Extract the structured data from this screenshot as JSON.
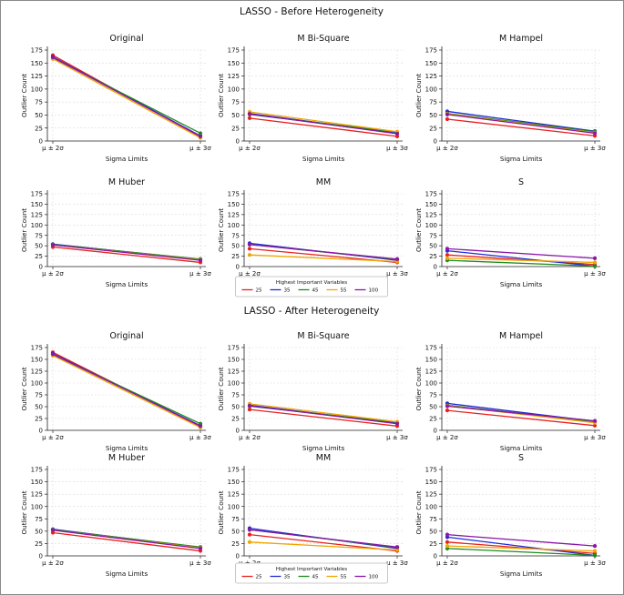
{
  "sections": [
    {
      "title": "LASSO - Before Heterogeneity",
      "legend": {
        "title": "Highest Important Variables",
        "entries": [
          "25",
          "35",
          "45",
          "55",
          "100"
        ]
      }
    },
    {
      "title": "LASSO - After Heterogeneity",
      "legend": {
        "title": "Highest Important Variables",
        "entries": [
          "25",
          "35",
          "45",
          "55",
          "100"
        ]
      }
    }
  ],
  "colors": {
    "25": "#e8201e",
    "35": "#1f2bd6",
    "45": "#1e8a1e",
    "55": "#f0a500",
    "100": "#8b16a8"
  },
  "chart_data": [
    {
      "section": 0,
      "type": "line",
      "title": "Original",
      "xlabel": "Sigma Limits",
      "ylabel": "Outlier Count",
      "categories": [
        "μ ± 2σ",
        "μ ± 3σ"
      ],
      "ylim": [
        0,
        175
      ],
      "yticks": [
        0,
        25,
        50,
        75,
        100,
        125,
        150,
        175
      ],
      "series": [
        {
          "name": "25",
          "values": [
            165,
            8
          ]
        },
        {
          "name": "35",
          "values": [
            162,
            10
          ]
        },
        {
          "name": "45",
          "values": [
            160,
            15
          ]
        },
        {
          "name": "55",
          "values": [
            158,
            6
          ]
        },
        {
          "name": "100",
          "values": [
            161,
            9
          ]
        }
      ]
    },
    {
      "section": 0,
      "type": "line",
      "title": "M Bi-Square",
      "xlabel": "Sigma Limits",
      "ylabel": "Outlier Count",
      "categories": [
        "μ ± 2σ",
        "μ ± 3σ"
      ],
      "ylim": [
        0,
        175
      ],
      "yticks": [
        0,
        25,
        50,
        75,
        100,
        125,
        150,
        175
      ],
      "series": [
        {
          "name": "25",
          "values": [
            44,
            9
          ]
        },
        {
          "name": "35",
          "values": [
            53,
            15
          ]
        },
        {
          "name": "45",
          "values": [
            51,
            17
          ]
        },
        {
          "name": "55",
          "values": [
            56,
            18
          ]
        },
        {
          "name": "100",
          "values": [
            52,
            14
          ]
        }
      ]
    },
    {
      "section": 0,
      "type": "line",
      "title": "M Hampel",
      "xlabel": "Sigma Limits",
      "ylabel": "Outlier Count",
      "categories": [
        "μ ± 2σ",
        "μ ± 3σ"
      ],
      "ylim": [
        0,
        175
      ],
      "yticks": [
        0,
        25,
        50,
        75,
        100,
        125,
        150,
        175
      ],
      "series": [
        {
          "name": "25",
          "values": [
            42,
            10
          ]
        },
        {
          "name": "35",
          "values": [
            57,
            19
          ]
        },
        {
          "name": "45",
          "values": [
            53,
            18
          ]
        },
        {
          "name": "55",
          "values": [
            52,
            16
          ]
        },
        {
          "name": "100",
          "values": [
            51,
            15
          ]
        }
      ]
    },
    {
      "section": 0,
      "type": "line",
      "title": "M Huber",
      "xlabel": "Sigma Limits",
      "ylabel": "Outlier Count",
      "categories": [
        "μ ± 2σ",
        "μ ± 3σ"
      ],
      "ylim": [
        0,
        175
      ],
      "yticks": [
        0,
        25,
        50,
        75,
        100,
        125,
        150,
        175
      ],
      "series": [
        {
          "name": "25",
          "values": [
            47,
            10
          ]
        },
        {
          "name": "35",
          "values": [
            54,
            17
          ]
        },
        {
          "name": "45",
          "values": [
            53,
            18
          ]
        },
        {
          "name": "55",
          "values": [
            52,
            16
          ]
        },
        {
          "name": "100",
          "values": [
            52,
            15
          ]
        }
      ]
    },
    {
      "section": 0,
      "type": "line",
      "title": "MM",
      "xlabel": "Sigma Limits",
      "ylabel": "Outlier Count",
      "categories": [
        "μ ± 2σ",
        "μ ± 3σ"
      ],
      "ylim": [
        0,
        175
      ],
      "yticks": [
        0,
        25,
        50,
        75,
        100,
        125,
        150,
        175
      ],
      "series": [
        {
          "name": "25",
          "values": [
            43,
            10
          ]
        },
        {
          "name": "35",
          "values": [
            56,
            15
          ]
        },
        {
          "name": "45",
          "values": [
            53,
            17
          ]
        },
        {
          "name": "55",
          "values": [
            28,
            12
          ]
        },
        {
          "name": "100",
          "values": [
            53,
            18
          ]
        }
      ]
    },
    {
      "section": 0,
      "type": "line",
      "title": "S",
      "xlabel": "Sigma Limits",
      "ylabel": "Outlier Count",
      "categories": [
        "μ ± 2σ",
        "μ ± 3σ"
      ],
      "ylim": [
        0,
        175
      ],
      "yticks": [
        0,
        25,
        50,
        75,
        100,
        125,
        150,
        175
      ],
      "series": [
        {
          "name": "25",
          "values": [
            28,
            5
          ]
        },
        {
          "name": "35",
          "values": [
            38,
            1
          ]
        },
        {
          "name": "45",
          "values": [
            15,
            1
          ]
        },
        {
          "name": "55",
          "values": [
            20,
            10
          ]
        },
        {
          "name": "100",
          "values": [
            43,
            20
          ]
        }
      ]
    },
    {
      "section": 1,
      "type": "line",
      "title": "Original",
      "xlabel": "Sigma Limits",
      "ylabel": "Outlier Count",
      "categories": [
        "μ ± 2σ",
        "μ ± 3σ"
      ],
      "ylim": [
        0,
        175
      ],
      "yticks": [
        0,
        25,
        50,
        75,
        100,
        125,
        150,
        175
      ],
      "series": [
        {
          "name": "25",
          "values": [
            165,
            8
          ]
        },
        {
          "name": "35",
          "values": [
            162,
            10
          ]
        },
        {
          "name": "45",
          "values": [
            160,
            14
          ]
        },
        {
          "name": "55",
          "values": [
            158,
            6
          ]
        },
        {
          "name": "100",
          "values": [
            161,
            9
          ]
        }
      ]
    },
    {
      "section": 1,
      "type": "line",
      "title": "M Bi-Square",
      "xlabel": "Sigma Limits",
      "ylabel": "Outlier Count",
      "categories": [
        "μ ± 2σ",
        "μ ± 3σ"
      ],
      "ylim": [
        0,
        175
      ],
      "yticks": [
        0,
        25,
        50,
        75,
        100,
        125,
        150,
        175
      ],
      "series": [
        {
          "name": "25",
          "values": [
            44,
            9
          ]
        },
        {
          "name": "35",
          "values": [
            53,
            15
          ]
        },
        {
          "name": "45",
          "values": [
            51,
            17
          ]
        },
        {
          "name": "55",
          "values": [
            56,
            18
          ]
        },
        {
          "name": "100",
          "values": [
            52,
            14
          ]
        }
      ]
    },
    {
      "section": 1,
      "type": "line",
      "title": "M Hampel",
      "xlabel": "Sigma Limits",
      "ylabel": "Outlier Count",
      "categories": [
        "μ ± 2σ",
        "μ ± 3σ"
      ],
      "ylim": [
        0,
        175
      ],
      "yticks": [
        0,
        25,
        50,
        75,
        100,
        125,
        150,
        175
      ],
      "series": [
        {
          "name": "25",
          "values": [
            42,
            10
          ]
        },
        {
          "name": "35",
          "values": [
            57,
            19
          ]
        },
        {
          "name": "45",
          "values": [
            53,
            18
          ]
        },
        {
          "name": "55",
          "values": [
            52,
            16
          ]
        },
        {
          "name": "100",
          "values": [
            51,
            20
          ]
        }
      ]
    },
    {
      "section": 1,
      "type": "line",
      "title": "M Huber",
      "xlabel": "Sigma Limits",
      "ylabel": "Outlier Count",
      "categories": [
        "μ ± 2σ",
        "μ ± 3σ"
      ],
      "ylim": [
        0,
        175
      ],
      "yticks": [
        0,
        25,
        50,
        75,
        100,
        125,
        150,
        175
      ],
      "series": [
        {
          "name": "25",
          "values": [
            47,
            10
          ]
        },
        {
          "name": "35",
          "values": [
            54,
            17
          ]
        },
        {
          "name": "45",
          "values": [
            53,
            18
          ]
        },
        {
          "name": "55",
          "values": [
            52,
            16
          ]
        },
        {
          "name": "100",
          "values": [
            52,
            15
          ]
        }
      ]
    },
    {
      "section": 1,
      "type": "line",
      "title": "MM",
      "xlabel": "Sigma Limits",
      "ylabel": "Outlier Count",
      "categories": [
        "μ ± 2σ",
        "μ ± 3σ"
      ],
      "ylim": [
        0,
        175
      ],
      "yticks": [
        0,
        25,
        50,
        75,
        100,
        125,
        150,
        175
      ],
      "series": [
        {
          "name": "25",
          "values": [
            43,
            10
          ]
        },
        {
          "name": "35",
          "values": [
            56,
            15
          ]
        },
        {
          "name": "45",
          "values": [
            53,
            17
          ]
        },
        {
          "name": "55",
          "values": [
            28,
            12
          ]
        },
        {
          "name": "100",
          "values": [
            53,
            18
          ]
        }
      ]
    },
    {
      "section": 1,
      "type": "line",
      "title": "S",
      "xlabel": "Sigma Limits",
      "ylabel": "Outlier Count",
      "categories": [
        "μ ± 2σ",
        "μ ± 3σ"
      ],
      "ylim": [
        0,
        175
      ],
      "yticks": [
        0,
        25,
        50,
        75,
        100,
        125,
        150,
        175
      ],
      "series": [
        {
          "name": "25",
          "values": [
            28,
            5
          ]
        },
        {
          "name": "35",
          "values": [
            38,
            1
          ]
        },
        {
          "name": "45",
          "values": [
            15,
            1
          ]
        },
        {
          "name": "55",
          "values": [
            20,
            10
          ]
        },
        {
          "name": "100",
          "values": [
            43,
            20
          ]
        }
      ]
    }
  ]
}
